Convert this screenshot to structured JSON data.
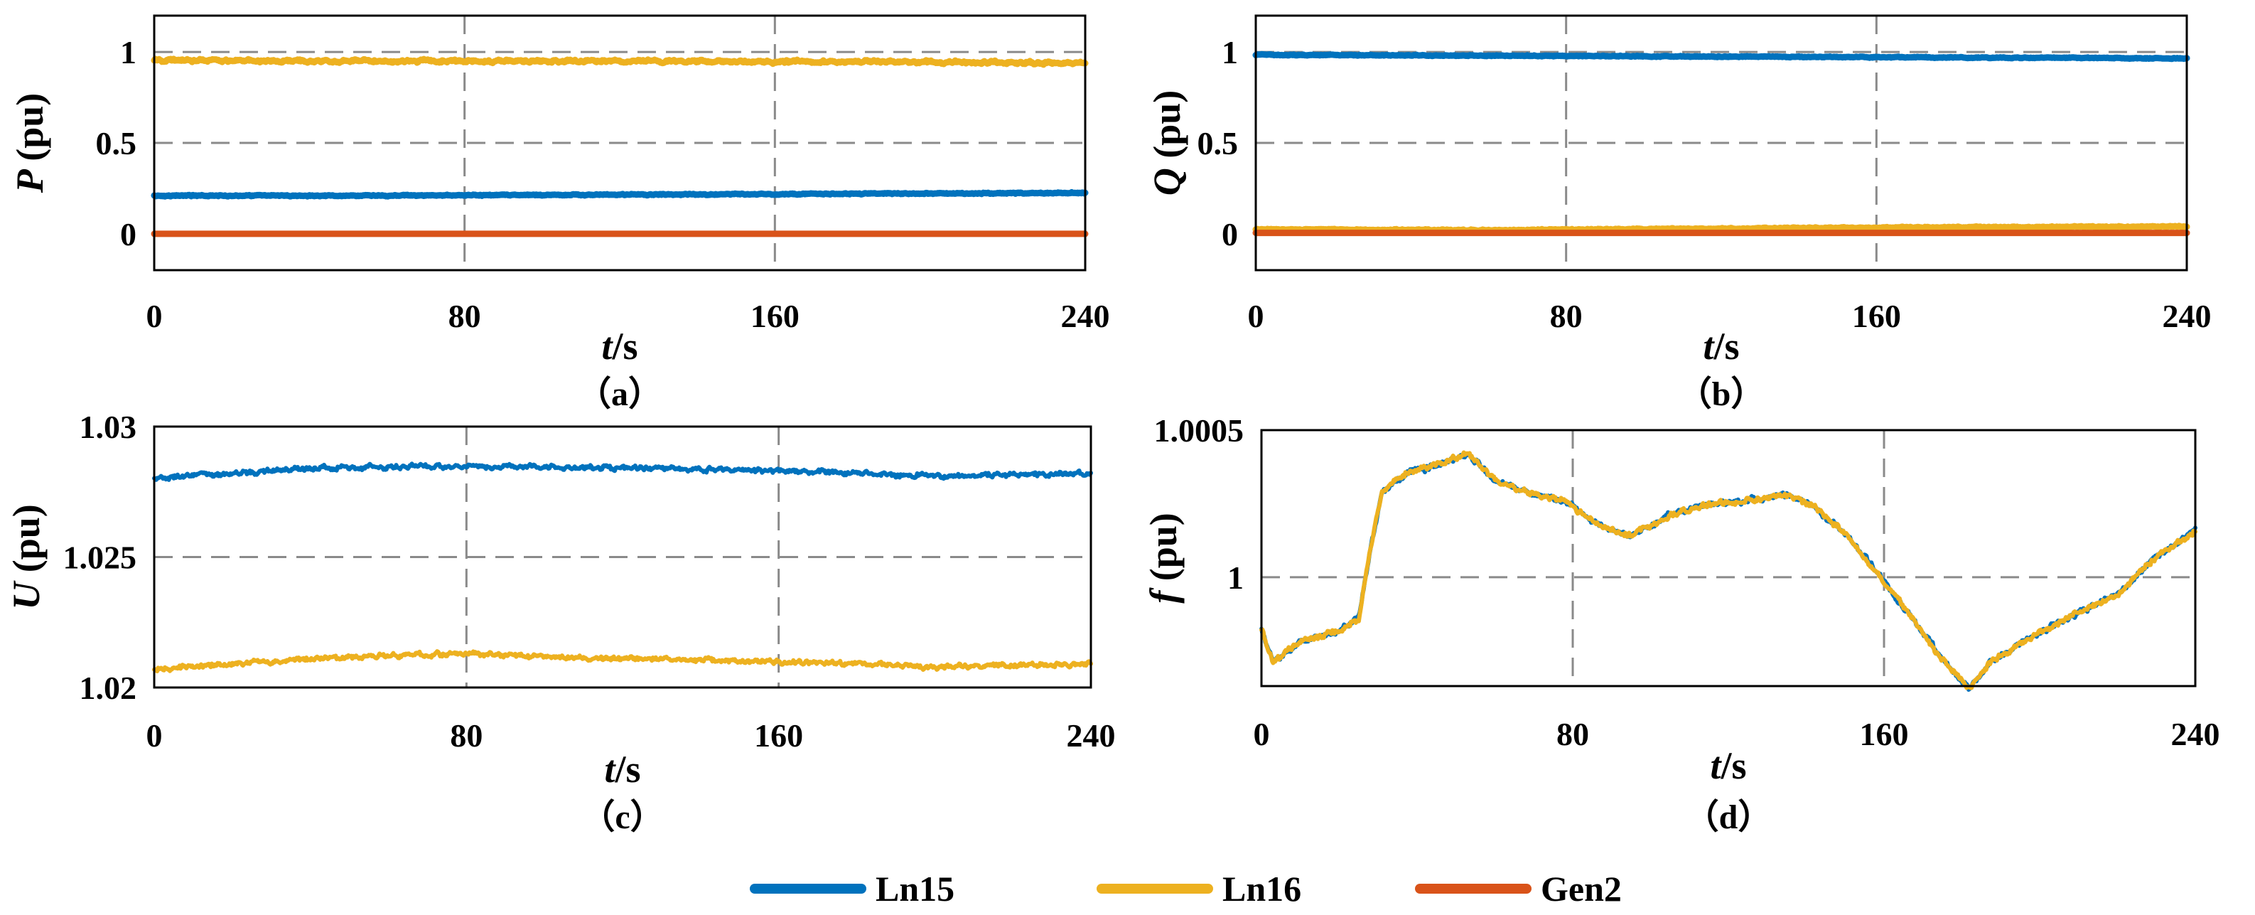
{
  "legend": [
    {
      "name": "Ln15",
      "color": "#0072BD"
    },
    {
      "name": "Ln16",
      "color": "#EDB120"
    },
    {
      "name": "Gen2",
      "color": "#D95319"
    }
  ],
  "chart_data": [
    {
      "id": "a",
      "type": "line",
      "caption": "（a）",
      "ylabel_var": "P",
      "ylabel_unit": "(pu)",
      "xlabel_var": "t",
      "xlabel_unit": "/s",
      "xlim": [
        0,
        240
      ],
      "ylim": [
        -0.2,
        1.2
      ],
      "xticks": [
        0,
        80,
        160,
        240
      ],
      "xtick_labels": [
        "0",
        "80",
        "160",
        "240"
      ],
      "yticks": [
        0,
        0.5,
        1
      ],
      "ytick_labels": [
        "0",
        "0.5",
        "1"
      ],
      "grid_x": [
        80,
        160
      ],
      "grid_y": [
        0.5,
        1
      ],
      "series": [
        {
          "name": "Ln15",
          "noise": 0.004,
          "x": [
            0,
            60,
            120,
            180,
            240
          ],
          "y": [
            0.21,
            0.21,
            0.215,
            0.22,
            0.225
          ]
        },
        {
          "name": "Ln16",
          "noise": 0.01,
          "x": [
            0,
            40,
            120,
            200,
            240
          ],
          "y": [
            0.955,
            0.95,
            0.95,
            0.945,
            0.94
          ]
        },
        {
          "name": "Gen2",
          "noise": 0,
          "x": [
            0,
            240
          ],
          "y": [
            0,
            0
          ]
        }
      ]
    },
    {
      "id": "b",
      "type": "line",
      "caption": "（b）",
      "ylabel_var": "Q",
      "ylabel_unit": "(pu)",
      "xlabel_var": "t",
      "xlabel_unit": "/s",
      "xlim": [
        0,
        240
      ],
      "ylim": [
        -0.2,
        1.2
      ],
      "xticks": [
        0,
        80,
        160,
        240
      ],
      "xtick_labels": [
        "0",
        "80",
        "160",
        "240"
      ],
      "yticks": [
        0,
        0.5,
        1
      ],
      "ytick_labels": [
        "0",
        "0.5",
        "1"
      ],
      "grid_x": [
        80,
        160
      ],
      "grid_y": [
        0.5,
        1
      ],
      "series": [
        {
          "name": "Ln15",
          "noise": 0.003,
          "x": [
            0,
            120,
            240
          ],
          "y": [
            0.985,
            0.975,
            0.965
          ]
        },
        {
          "name": "Ln16",
          "noise": 0.004,
          "x": [
            0,
            60,
            160,
            240
          ],
          "y": [
            0.025,
            0.02,
            0.035,
            0.04
          ]
        },
        {
          "name": "Gen2",
          "noise": 0,
          "x": [
            0,
            240
          ],
          "y": [
            0.005,
            0.005
          ]
        }
      ]
    },
    {
      "id": "c",
      "type": "line",
      "caption": "（c）",
      "ylabel_var": "U",
      "ylabel_unit": "(pu)",
      "xlabel_var": "t",
      "xlabel_unit": "/s",
      "xlim": [
        0,
        240
      ],
      "ylim": [
        1.02,
        1.03
      ],
      "xticks": [
        0,
        80,
        160,
        240
      ],
      "xtick_labels": [
        "0",
        "80",
        "160",
        "240"
      ],
      "yticks": [
        1.02,
        1.025,
        1.03
      ],
      "ytick_labels": [
        "1.02",
        "1.025",
        "1.03"
      ],
      "grid_x": [
        80,
        160
      ],
      "grid_y": [
        1.025
      ],
      "series": [
        {
          "name": "Ln15",
          "noise": 0.00012,
          "x": [
            0,
            40,
            80,
            120,
            160,
            200,
            240
          ],
          "y": [
            1.028,
            1.0284,
            1.0285,
            1.0284,
            1.0283,
            1.0281,
            1.0282
          ]
        },
        {
          "name": "Ln16",
          "noise": 0.00012,
          "x": [
            0,
            40,
            80,
            120,
            160,
            200,
            240
          ],
          "y": [
            1.0207,
            1.0211,
            1.0213,
            1.0211,
            1.021,
            1.0208,
            1.0209
          ]
        }
      ]
    },
    {
      "id": "d",
      "type": "line",
      "caption": "（d）",
      "ylabel_var": "f",
      "ylabel_unit": "(pu)",
      "xlabel_var": "t",
      "xlabel_unit": "/s",
      "xlim": [
        0,
        240
      ],
      "ylim": [
        0.99963,
        1.0005
      ],
      "xticks": [
        0,
        80,
        160,
        240
      ],
      "xtick_labels": [
        "0",
        "80",
        "160",
        "240"
      ],
      "yticks": [
        1,
        1.0005
      ],
      "ytick_labels": [
        "1",
        "1.0005"
      ],
      "grid_x": [
        80,
        160
      ],
      "grid_y": [
        1
      ],
      "series": [
        {
          "name": "Ln15",
          "noise": 1.2e-05,
          "x": [
            0,
            3,
            10,
            20,
            25,
            28,
            31,
            38,
            45,
            53,
            60,
            70,
            78,
            85,
            95,
            105,
            115,
            125,
            135,
            142,
            150,
            158,
            165,
            175,
            182,
            188,
            200,
            210,
            220,
            230,
            240
          ],
          "y": [
            0.99982,
            0.99971,
            0.99978,
            0.99982,
            0.99986,
            1.0001,
            1.00029,
            1.00036,
            1.00038,
            1.00042,
            1.00033,
            1.00028,
            1.00026,
            1.00019,
            1.00014,
            1.00021,
            1.00025,
            1.00026,
            1.00028,
            1.00024,
            1.00015,
            1.00002,
            0.9999,
            0.99972,
            0.99962,
            0.99972,
            0.99981,
            0.99988,
            0.99994,
            1.00007,
            1.00016
          ]
        },
        {
          "name": "Ln16",
          "noise": 1.2e-05,
          "x": [
            0,
            3,
            10,
            20,
            25,
            28,
            31,
            38,
            45,
            53,
            60,
            70,
            78,
            85,
            95,
            105,
            115,
            125,
            135,
            142,
            150,
            158,
            165,
            175,
            182,
            188,
            200,
            210,
            220,
            230,
            240
          ],
          "y": [
            0.99982,
            0.99971,
            0.99978,
            0.99982,
            0.99986,
            1.0001,
            1.00029,
            1.00036,
            1.00038,
            1.00042,
            1.00033,
            1.00028,
            1.00026,
            1.00019,
            1.00014,
            1.00021,
            1.00025,
            1.00026,
            1.00028,
            1.00024,
            1.00015,
            1.00002,
            0.9999,
            0.99972,
            0.99962,
            0.99972,
            0.99981,
            0.99988,
            0.99994,
            1.00007,
            1.00016
          ]
        }
      ]
    }
  ]
}
